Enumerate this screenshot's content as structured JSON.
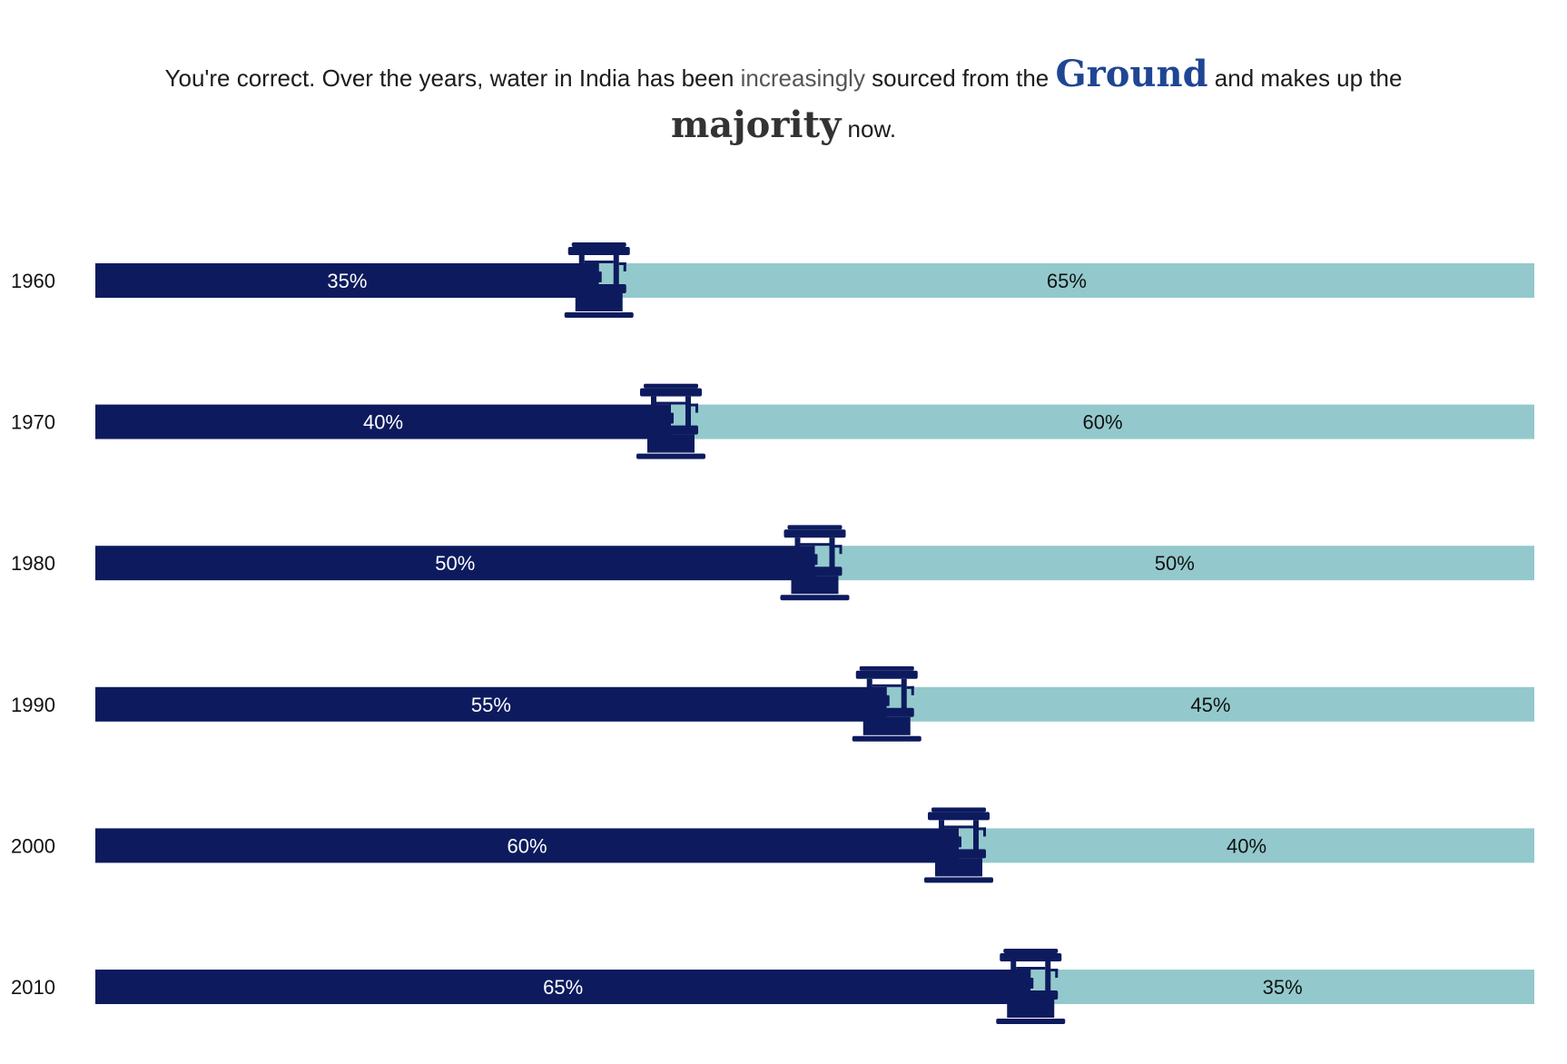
{
  "headline": {
    "part1": "You're correct. Over the years, water in India has been ",
    "part2": "increasingly",
    "part3": " sourced from the ",
    "emph1": "Ground",
    "part4": " and makes up the ",
    "emph2": "majority",
    "part5": " now."
  },
  "colors": {
    "ground": "#0d1b5e",
    "other": "#93c9cc",
    "emph_ground": "#1f4594",
    "emph_majority": "#333333"
  },
  "icon": "water-well-icon",
  "chart_data": {
    "type": "bar",
    "stacked": true,
    "orientation": "horizontal",
    "categories": [
      "1960",
      "1970",
      "1980",
      "1990",
      "2000",
      "2010"
    ],
    "series": [
      {
        "values": [
          35,
          40,
          50,
          55,
          60,
          65
        ],
        "labels": [
          "35%",
          "40%",
          "50%",
          "55%",
          "60%",
          "65%"
        ]
      },
      {
        "values": [
          65,
          60,
          50,
          45,
          40,
          35
        ],
        "labels": [
          "65%",
          "60%",
          "50%",
          "45%",
          "40%",
          "35%"
        ]
      }
    ],
    "xlim": [
      0,
      100
    ],
    "grid": false,
    "legend": "none"
  }
}
